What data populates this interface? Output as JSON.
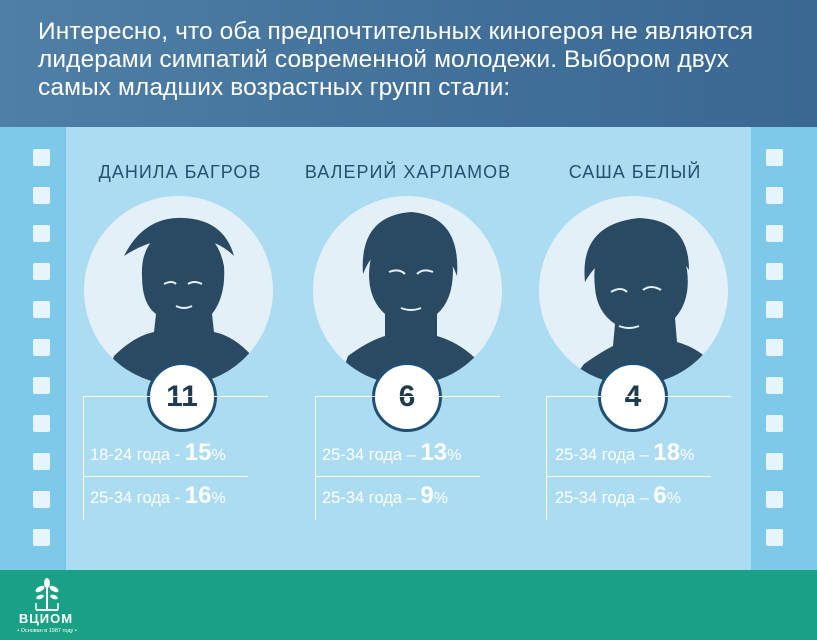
{
  "header": {
    "text": "Интересно, что оба предпочтительных киногероя не являются лидерами симпатий современной молодежи. Выбором двух самых младших возрастных групп стали:"
  },
  "heroes": [
    {
      "name": "ДАНИЛА БАГРОВ",
      "rank": "11",
      "rows": [
        {
          "label": "18-24 года - ",
          "value": "15",
          "unit": "%"
        },
        {
          "label": "25-34 года - ",
          "value": "16",
          "unit": "%"
        }
      ]
    },
    {
      "name": "ВАЛЕРИЙ ХАРЛАМОВ",
      "rank": "6",
      "rows": [
        {
          "label": "25-34 года – ",
          "value": "13",
          "unit": "%"
        },
        {
          "label": "25-34 года – ",
          "value": "9",
          "unit": "%"
        }
      ]
    },
    {
      "name": "САША БЕЛЫЙ",
      "rank": "4",
      "rows": [
        {
          "label": "25-34 года – ",
          "value": "18",
          "unit": "%"
        },
        {
          "label": "25-34 года – ",
          "value": "6",
          "unit": "%"
        }
      ]
    }
  ],
  "footer": {
    "logo": "ВЦИОМ",
    "tagline": "• Основан в 1987 году •"
  },
  "colors": {
    "header_bg": "#406f99",
    "panel_bg": "#abdcf2",
    "strip_bg": "#7ec8ea",
    "footer_bg": "#19a085",
    "portrait": "#2a4a64"
  }
}
